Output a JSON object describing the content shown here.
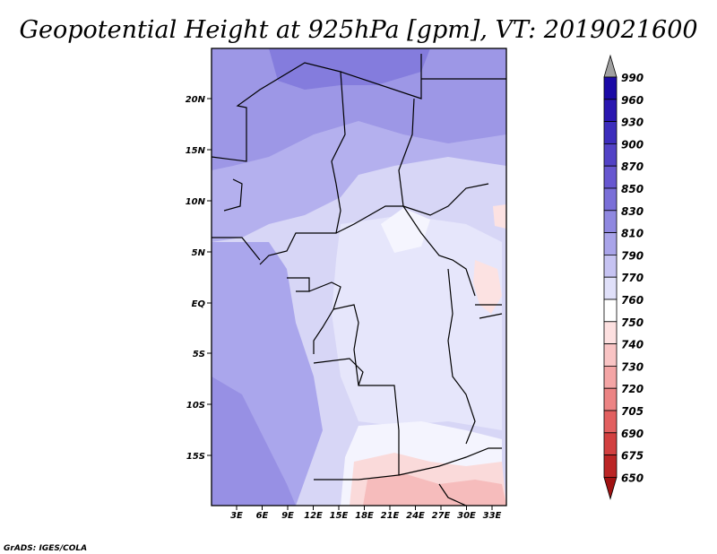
{
  "title": "Geopotential Height at 925hPa [gpm], VT: 2019021600",
  "credit": "GrADS: IGES/COLA",
  "map": {
    "lat_ticks": [
      "20N",
      "15N",
      "10N",
      "5N",
      "EQ",
      "5S",
      "10S",
      "15S"
    ],
    "lon_ticks": [
      "3E",
      "6E",
      "9E",
      "12E",
      "15E",
      "18E",
      "21E",
      "24E",
      "27E",
      "30E",
      "33E"
    ]
  },
  "colorbar": {
    "levels": [
      "990",
      "960",
      "930",
      "900",
      "870",
      "850",
      "830",
      "810",
      "790",
      "770",
      "760",
      "750",
      "740",
      "730",
      "720",
      "705",
      "690",
      "675",
      "650"
    ],
    "colors": [
      "#1b0aa6",
      "#2a17b0",
      "#3c2dbc",
      "#5242c6",
      "#6757d0",
      "#7a6fd8",
      "#8f88e0",
      "#a9a4e9",
      "#c6c3f2",
      "#e0e0f9",
      "#ffffff",
      "#fde0e0",
      "#f9c4c4",
      "#f4a5a5",
      "#ec8484",
      "#e26060",
      "#d24040",
      "#bb2525",
      "#a01212"
    ]
  }
}
